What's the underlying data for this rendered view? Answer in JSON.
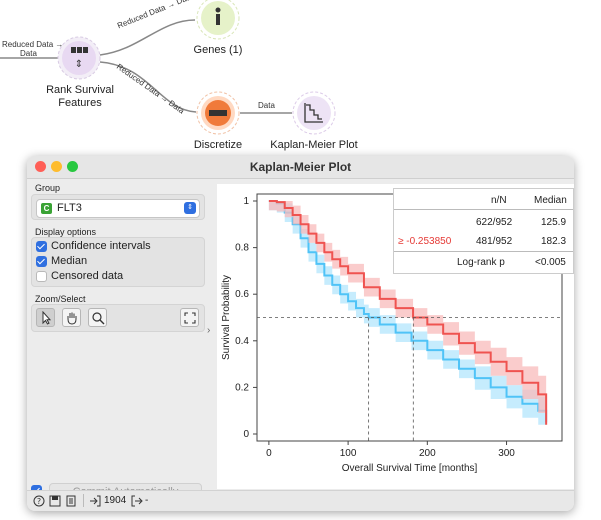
{
  "workflow": {
    "links": [
      {
        "id": "l1",
        "label": "Reduced Data → Data"
      },
      {
        "id": "l2",
        "label": "Reduced Data → Data"
      },
      {
        "id": "l3",
        "label": "Reduced Data → Data"
      },
      {
        "id": "l4",
        "label": "Data"
      }
    ],
    "incoming_label_line1": "Reduced Data →",
    "incoming_label_line2": "Data",
    "nodes": {
      "rank": {
        "label_line1": "Rank Survival",
        "label_line2": "Features",
        "color": "#e8d9f2"
      },
      "genes": {
        "label": "Genes (1)",
        "color": "#e6f2c9"
      },
      "discretize": {
        "label": "Discretize",
        "color": "#ffd9c2"
      },
      "km": {
        "label": "Kaplan-Meier Plot",
        "color": "#ede3f5"
      }
    }
  },
  "window": {
    "title": "Kaplan-Meier Plot",
    "group": {
      "title": "Group",
      "value": "FLT3",
      "badge": "C"
    },
    "display": {
      "title": "Display options",
      "items": [
        {
          "label": "Confidence intervals",
          "checked": true
        },
        {
          "label": "Median",
          "checked": true
        },
        {
          "label": "Censored data",
          "checked": false
        }
      ]
    },
    "zoom": {
      "title": "Zoom/Select",
      "tools": [
        "pointer-icon",
        "hand-icon",
        "magnifier-icon"
      ],
      "reset": "fit-icon"
    },
    "commit": {
      "label": "Commit Automatically",
      "checked": true
    },
    "status": {
      "in_count": "1904",
      "out_count": "-"
    }
  },
  "stats": {
    "headers": [
      "n/N",
      "Median"
    ],
    "rows": [
      {
        "group": "",
        "nN": "622/952",
        "median": "125.9",
        "color": "#222222"
      },
      {
        "group": "≥ -0.253850",
        "nN": "481/952",
        "median": "182.3",
        "color": "#e53935"
      }
    ],
    "logrank_label": "Log-rank p",
    "logrank_value": "<0.005"
  },
  "chart_data": {
    "type": "line",
    "xlabel": "Overall Survival Time [months]",
    "ylabel": "Survival Probability",
    "xlim": [
      -15,
      370
    ],
    "ylim": [
      -0.03,
      1.03
    ],
    "xticks": [
      0,
      100,
      200,
      300
    ],
    "yticks": [
      0,
      0.2,
      0.4,
      0.6,
      0.8,
      1
    ],
    "median_line": 0.5,
    "series": [
      {
        "color": "#4fc3f7",
        "band": "#b3e5fc",
        "points": [
          [
            0,
            1
          ],
          [
            10,
            0.99
          ],
          [
            20,
            0.95
          ],
          [
            30,
            0.9
          ],
          [
            40,
            0.84
          ],
          [
            50,
            0.78
          ],
          [
            60,
            0.73
          ],
          [
            70,
            0.68
          ],
          [
            80,
            0.64
          ],
          [
            90,
            0.6
          ],
          [
            100,
            0.57
          ],
          [
            110,
            0.54
          ],
          [
            120,
            0.515
          ],
          [
            126,
            0.5
          ],
          [
            140,
            0.47
          ],
          [
            160,
            0.435
          ],
          [
            180,
            0.4
          ],
          [
            200,
            0.36
          ],
          [
            220,
            0.32
          ],
          [
            240,
            0.28
          ],
          [
            260,
            0.24
          ],
          [
            280,
            0.2
          ],
          [
            300,
            0.16
          ],
          [
            320,
            0.13
          ],
          [
            340,
            0.1
          ],
          [
            350,
            0.05
          ]
        ],
        "ci": [
          0.04,
          0.04,
          0.04,
          0.04,
          0.04,
          0.04,
          0.04,
          0.04,
          0.04,
          0.04,
          0.04,
          0.04,
          0.04,
          0.04,
          0.04,
          0.04,
          0.04,
          0.04,
          0.04,
          0.04,
          0.05,
          0.05,
          0.05,
          0.06,
          0.06,
          0.06
        ]
      },
      {
        "color": "#ef5350",
        "band": "#f8bbbb",
        "points": [
          [
            0,
            1
          ],
          [
            10,
            0.995
          ],
          [
            20,
            0.97
          ],
          [
            30,
            0.94
          ],
          [
            40,
            0.9
          ],
          [
            50,
            0.86
          ],
          [
            60,
            0.82
          ],
          [
            70,
            0.78
          ],
          [
            80,
            0.75
          ],
          [
            90,
            0.72
          ],
          [
            100,
            0.69
          ],
          [
            120,
            0.63
          ],
          [
            140,
            0.58
          ],
          [
            160,
            0.54
          ],
          [
            182,
            0.5
          ],
          [
            200,
            0.47
          ],
          [
            220,
            0.43
          ],
          [
            240,
            0.39
          ],
          [
            260,
            0.35
          ],
          [
            280,
            0.31
          ],
          [
            300,
            0.27
          ],
          [
            320,
            0.22
          ],
          [
            340,
            0.17
          ],
          [
            350,
            0.04
          ]
        ],
        "ci": [
          0.04,
          0.04,
          0.04,
          0.04,
          0.04,
          0.04,
          0.04,
          0.04,
          0.04,
          0.04,
          0.04,
          0.04,
          0.04,
          0.04,
          0.04,
          0.04,
          0.05,
          0.05,
          0.05,
          0.06,
          0.06,
          0.07,
          0.08,
          0.08
        ]
      }
    ],
    "median_markers": [
      125.9,
      182.3
    ]
  }
}
